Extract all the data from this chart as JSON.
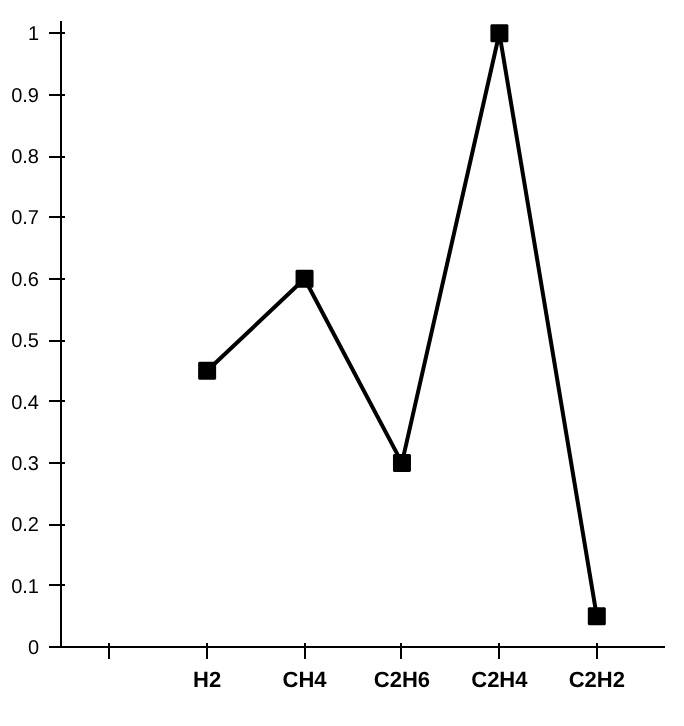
{
  "chart_data": {
    "type": "line",
    "categories": [
      null,
      "H2",
      "CH4",
      "C2H6",
      "C2H4",
      "C2H2"
    ],
    "series": [
      {
        "color": "#000000",
        "values": [
          null,
          0.45,
          0.6,
          0.3,
          1.0,
          0.05
        ]
      }
    ],
    "ylim": [
      0,
      1.02
    ],
    "yticks": [
      0,
      0.1,
      0.2,
      0.3,
      0.4,
      0.5,
      0.6,
      0.7,
      0.8,
      0.9,
      1
    ],
    "marker": "square",
    "line_style": "solid"
  }
}
